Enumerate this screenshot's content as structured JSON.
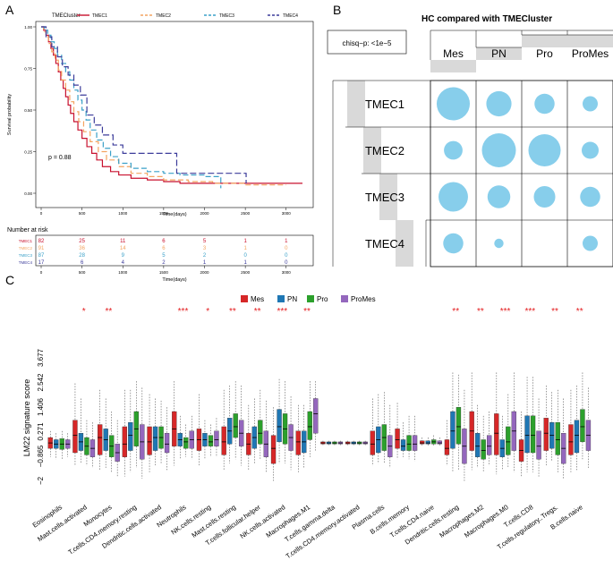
{
  "panel_labels": {
    "a": "A",
    "b": "B",
    "c": "C"
  },
  "chart_data": [
    {
      "type": "line",
      "title": "",
      "legend_title": "TMECluster",
      "xlabel": "Time(days)",
      "ylabel": "Survival probability",
      "xlim": [
        0,
        3200
      ],
      "ylim": [
        0,
        1
      ],
      "x_ticks": [
        "0",
        "500",
        "1000",
        "1500",
        "2000",
        "2500",
        "3000"
      ],
      "y_ticks": [
        "0.00",
        "0.25",
        "0.50",
        "0.75",
        "1.00"
      ],
      "annotation": "p = 0.88",
      "series": [
        {
          "name": "TMEC1",
          "color": "#c8102e",
          "dash": "",
          "x": [
            0,
            30,
            60,
            90,
            120,
            150,
            180,
            210,
            240,
            270,
            300,
            330,
            360,
            400,
            450,
            500,
            560,
            620,
            680,
            750,
            850,
            950,
            1100,
            1300,
            1500,
            1700,
            1900,
            2200,
            2700,
            3200
          ],
          "y": [
            1.0,
            0.98,
            0.95,
            0.91,
            0.87,
            0.83,
            0.78,
            0.73,
            0.68,
            0.63,
            0.58,
            0.53,
            0.48,
            0.43,
            0.38,
            0.33,
            0.28,
            0.24,
            0.2,
            0.16,
            0.13,
            0.11,
            0.09,
            0.08,
            0.07,
            0.06,
            0.06,
            0.06,
            0.06,
            0.06
          ]
        },
        {
          "name": "TMEC2",
          "color": "#f4a460",
          "dash": "6,3",
          "x": [
            0,
            30,
            60,
            90,
            130,
            170,
            210,
            250,
            300,
            350,
            400,
            460,
            520,
            600,
            700,
            800,
            950,
            1100,
            1300,
            1500,
            1800,
            2100,
            2500,
            3000
          ],
          "y": [
            1.0,
            0.97,
            0.94,
            0.9,
            0.85,
            0.8,
            0.74,
            0.68,
            0.62,
            0.55,
            0.49,
            0.43,
            0.37,
            0.31,
            0.25,
            0.2,
            0.16,
            0.12,
            0.1,
            0.08,
            0.07,
            0.06,
            0.05,
            0.05
          ]
        },
        {
          "name": "TMEC3",
          "color": "#3aa0c8",
          "dash": "6,3",
          "x": [
            0,
            40,
            80,
            120,
            160,
            200,
            250,
            300,
            350,
            400,
            450,
            500,
            550,
            600,
            680,
            760,
            850,
            950,
            1100,
            1300,
            1500,
            1700,
            2000,
            2180,
            2200
          ],
          "y": [
            1.0,
            0.98,
            0.95,
            0.91,
            0.87,
            0.83,
            0.78,
            0.73,
            0.68,
            0.62,
            0.56,
            0.5,
            0.44,
            0.38,
            0.32,
            0.27,
            0.22,
            0.18,
            0.15,
            0.13,
            0.12,
            0.11,
            0.1,
            0.1,
            0.03
          ]
        },
        {
          "name": "TMEC4",
          "color": "#3b3b9a",
          "dash": "7,3",
          "x": [
            0,
            60,
            130,
            200,
            260,
            330,
            400,
            480,
            560,
            650,
            750,
            880,
            1000,
            1200,
            1650,
            1660,
            1720,
            2500,
            2510
          ],
          "y": [
            1.0,
            0.94,
            0.88,
            0.82,
            0.76,
            0.71,
            0.65,
            0.59,
            0.47,
            0.41,
            0.35,
            0.29,
            0.24,
            0.24,
            0.24,
            0.12,
            0.12,
            0.12,
            0.06
          ]
        }
      ],
      "risk_table": {
        "title": "Number at risk",
        "xlabel": "Time(days)",
        "rows": [
          {
            "name": "TMEC1",
            "color": "#c8102e",
            "values": [
              "82",
              "25",
              "11",
              "6",
              "5",
              "1",
              "1"
            ]
          },
          {
            "name": "TMEC2",
            "color": "#f4a460",
            "values": [
              "91",
              "36",
              "14",
              "6",
              "3",
              "1",
              "0"
            ]
          },
          {
            "name": "TMEC3",
            "color": "#3aa0c8",
            "values": [
              "87",
              "28",
              "9",
              "5",
              "2",
              "0",
              "0"
            ]
          },
          {
            "name": "TMEC4",
            "color": "#3b3b9a",
            "values": [
              "17",
              "6",
              "4",
              "2",
              "1",
              "1",
              "0"
            ]
          }
        ]
      }
    },
    {
      "type": "heatmap",
      "title": "HC compared with TMECluster",
      "stat_label": "chisq−p: <1e−5",
      "columns": [
        "Mes",
        "PN",
        "Pro",
        "ProMes"
      ],
      "rows": [
        "TMEC1",
        "TMEC2",
        "TMEC3",
        "TMEC4"
      ],
      "bubble_color": "#87ceeb",
      "values": [
        [
          38,
          22,
          14,
          8
        ],
        [
          12,
          40,
          36,
          10
        ],
        [
          30,
          18,
          16,
          14
        ],
        [
          14,
          3,
          0,
          8
        ]
      ]
    },
    {
      "type": "box",
      "ylabel": "LM22 signature score",
      "y_ticks": [
        "3.677",
        "2.542",
        "1.406",
        "0.271",
        "−0.865",
        "−2"
      ],
      "y_tick_values": [
        3.677,
        2.542,
        1.406,
        0.271,
        -0.865,
        -2.0
      ],
      "ylim": [
        -2.6,
        5.0
      ],
      "legend": [
        {
          "name": "Mes",
          "color": "#d62728"
        },
        {
          "name": "PN",
          "color": "#1f77b4"
        },
        {
          "name": "Pro",
          "color": "#2ca02c"
        },
        {
          "name": "ProMes",
          "color": "#9467bd"
        }
      ],
      "categories": [
        {
          "name": "Eosinophils",
          "sig": ""
        },
        {
          "name": "Mast.cells.activated",
          "sig": "*"
        },
        {
          "name": "Monocytes",
          "sig": "**"
        },
        {
          "name": "T.cells.CD4.memory.resting",
          "sig": ""
        },
        {
          "name": "Dendritic.cells.activated",
          "sig": ""
        },
        {
          "name": "Neutrophils",
          "sig": "***"
        },
        {
          "name": "NK.cells.resting",
          "sig": "*"
        },
        {
          "name": "Mast.cells.resting",
          "sig": "**"
        },
        {
          "name": "T.cells.follicular.helper",
          "sig": "**"
        },
        {
          "name": "NK.cells.activated",
          "sig": "***"
        },
        {
          "name": "Macrophages.M1",
          "sig": "**"
        },
        {
          "name": "T.cells.gamma.delta",
          "sig": ""
        },
        {
          "name": "T.cells.CD4.memory.activated",
          "sig": ""
        },
        {
          "name": "Plasma.cells",
          "sig": ""
        },
        {
          "name": "B.cells.memory",
          "sig": ""
        },
        {
          "name": "T.cells.CD4.naive",
          "sig": ""
        },
        {
          "name": "Dendritic.cells.resting",
          "sig": "**"
        },
        {
          "name": "Macrophages.M2",
          "sig": "**"
        },
        {
          "name": "Macrophages.M0",
          "sig": "***"
        },
        {
          "name": "T.cells.CD8",
          "sig": "***"
        },
        {
          "name": "T.cells.regulatory..Tregs.",
          "sig": "**"
        },
        {
          "name": "B.cells.naive",
          "sig": "**"
        }
      ],
      "boxes": [
        [
          [
            -0.9,
            -0.5,
            -0.25,
            0.0,
            0.3
          ],
          [
            -1.0,
            -0.5,
            -0.3,
            -0.1,
            0.2
          ],
          [
            -1.0,
            -0.55,
            -0.3,
            -0.05,
            0.3
          ],
          [
            -0.9,
            -0.5,
            -0.3,
            -0.1,
            0.2
          ]
        ],
        [
          [
            -1.3,
            -0.7,
            0.1,
            0.8,
            2.5
          ],
          [
            -1.2,
            -0.6,
            -0.2,
            0.2,
            1.8
          ],
          [
            -1.3,
            -0.8,
            -0.4,
            0.0,
            0.8
          ],
          [
            -1.4,
            -0.9,
            -0.5,
            -0.1,
            0.7
          ]
        ],
        [
          [
            -1.5,
            -0.8,
            0.0,
            0.6,
            2.2
          ],
          [
            -1.4,
            -0.6,
            -0.1,
            0.4,
            1.8
          ],
          [
            -1.6,
            -0.9,
            -0.4,
            0.1,
            1.2
          ],
          [
            -1.8,
            -1.1,
            -0.7,
            -0.3,
            0.8
          ]
        ],
        [
          [
            -1.8,
            -0.9,
            -0.3,
            0.5,
            2.2
          ],
          [
            -1.6,
            -0.6,
            0.1,
            0.7,
            2.2
          ],
          [
            -1.4,
            -0.4,
            0.4,
            1.2,
            2.6
          ],
          [
            -1.9,
            -1.0,
            -0.2,
            0.6,
            2.3
          ]
        ],
        [
          [
            -1.6,
            -0.8,
            -0.2,
            0.5,
            2.0
          ],
          [
            -1.3,
            -0.6,
            0.0,
            0.5,
            1.8
          ],
          [
            -1.2,
            -0.5,
            0.0,
            0.5,
            1.7
          ],
          [
            -1.5,
            -0.7,
            -0.3,
            0.2,
            1.4
          ]
        ],
        [
          [
            -1.3,
            -0.4,
            0.4,
            1.2,
            2.6
          ],
          [
            -1.0,
            -0.4,
            -0.1,
            0.2,
            1.0
          ],
          [
            -0.9,
            -0.5,
            -0.2,
            0.0,
            0.6
          ],
          [
            -1.0,
            -0.5,
            -0.1,
            0.3,
            1.0
          ]
        ],
        [
          [
            -1.3,
            -0.6,
            -0.1,
            0.4,
            2.0
          ],
          [
            -1.0,
            -0.4,
            -0.1,
            0.2,
            0.8
          ],
          [
            -0.9,
            -0.4,
            -0.2,
            0.1,
            0.6
          ],
          [
            -0.9,
            -0.4,
            -0.1,
            0.3,
            0.9
          ]
        ],
        [
          [
            -1.5,
            -0.8,
            -0.2,
            0.5,
            2.2
          ],
          [
            -1.2,
            -0.3,
            0.3,
            0.9,
            2.4
          ],
          [
            -1.0,
            0.0,
            0.5,
            1.1,
            2.6
          ],
          [
            -1.3,
            -0.4,
            0.2,
            0.8,
            2.4
          ]
        ],
        [
          [
            -1.5,
            -0.8,
            -0.3,
            0.2,
            1.5
          ],
          [
            -1.2,
            -0.5,
            0.0,
            0.5,
            1.8
          ],
          [
            -1.0,
            -0.3,
            0.2,
            0.8,
            2.2
          ],
          [
            -1.6,
            -0.9,
            -0.3,
            0.3,
            1.7
          ]
        ],
        [
          [
            -2.0,
            -1.2,
            -0.5,
            0.1,
            1.4
          ],
          [
            -1.2,
            -0.2,
            0.5,
            1.3,
            2.7
          ],
          [
            -1.2,
            -0.3,
            0.4,
            1.1,
            2.6
          ],
          [
            -1.5,
            -0.6,
            0.0,
            0.6,
            1.9
          ]
        ],
        [
          [
            -1.6,
            -0.8,
            -0.2,
            0.3,
            1.5
          ],
          [
            -1.4,
            -0.7,
            -0.2,
            0.3,
            1.5
          ],
          [
            -0.9,
            -0.1,
            0.5,
            1.2,
            2.6
          ],
          [
            -0.6,
            0.2,
            1.1,
            1.8,
            2.6
          ]
        ],
        [
          [
            -0.35,
            -0.3,
            -0.25,
            -0.2,
            -0.15
          ],
          [
            -0.35,
            -0.3,
            -0.25,
            -0.2,
            -0.15
          ],
          [
            -0.35,
            -0.3,
            -0.25,
            -0.2,
            -0.15
          ],
          [
            -0.35,
            -0.3,
            -0.25,
            -0.2,
            -0.15
          ]
        ],
        [
          [
            -0.35,
            -0.3,
            -0.25,
            -0.2,
            -0.15
          ],
          [
            -0.35,
            -0.3,
            -0.25,
            -0.2,
            -0.15
          ],
          [
            -0.35,
            -0.3,
            -0.25,
            -0.2,
            -0.15
          ],
          [
            -0.35,
            -0.3,
            -0.25,
            -0.2,
            -0.15
          ]
        ],
        [
          [
            -1.3,
            -0.8,
            -0.3,
            0.3,
            1.8
          ],
          [
            -1.2,
            -0.7,
            -0.1,
            0.5,
            2.0
          ],
          [
            -1.2,
            -0.6,
            0.0,
            0.6,
            2.1
          ],
          [
            -1.4,
            -0.9,
            -0.4,
            0.1,
            1.5
          ]
        ],
        [
          [
            -1.0,
            -0.5,
            -0.1,
            0.4,
            1.6
          ],
          [
            -0.9,
            -0.6,
            -0.4,
            -0.1,
            0.7
          ],
          [
            -1.0,
            -0.6,
            -0.3,
            0.1,
            1.0
          ],
          [
            -1.1,
            -0.6,
            -0.3,
            0.1,
            1.0
          ]
        ],
        [
          [
            -0.4,
            -0.3,
            -0.25,
            -0.15,
            0.0
          ],
          [
            -0.4,
            -0.3,
            -0.25,
            -0.15,
            0.0
          ],
          [
            -0.4,
            -0.3,
            -0.2,
            -0.1,
            0.1
          ],
          [
            -0.4,
            -0.3,
            -0.25,
            -0.15,
            0.0
          ]
        ],
        [
          [
            -1.3,
            -0.8,
            -0.5,
            -0.1,
            0.8
          ],
          [
            -1.6,
            -0.5,
            0.3,
            1.2,
            3.0
          ],
          [
            -1.5,
            -0.3,
            0.5,
            1.4,
            2.9
          ],
          [
            -2.0,
            -1.2,
            -0.4,
            0.4,
            2.2
          ]
        ],
        [
          [
            -1.5,
            -0.6,
            0.3,
            1.2,
            3.0
          ],
          [
            -1.4,
            -0.9,
            -0.4,
            0.2,
            1.5
          ],
          [
            -1.6,
            -1.0,
            -0.6,
            -0.1,
            1.0
          ],
          [
            -1.3,
            -0.8,
            -0.4,
            0.1,
            1.2
          ]
        ],
        [
          [
            -1.7,
            -0.8,
            0.2,
            1.1,
            3.0
          ],
          [
            -1.5,
            -0.9,
            -0.5,
            -0.1,
            1.0
          ],
          [
            -1.4,
            -0.8,
            -0.2,
            0.5,
            2.0
          ],
          [
            -1.6,
            -0.6,
            0.3,
            1.2,
            3.0
          ]
        ],
        [
          [
            -1.8,
            -1.1,
            -0.6,
            -0.1,
            1.2
          ],
          [
            -1.6,
            -0.7,
            0.1,
            1.0,
            2.8
          ],
          [
            -1.6,
            -0.7,
            0.1,
            1.0,
            2.8
          ],
          [
            -1.8,
            -1.0,
            -0.4,
            0.3,
            1.8
          ]
        ],
        [
          [
            -1.3,
            -0.6,
            0.2,
            0.9,
            2.4
          ],
          [
            -1.1,
            -0.5,
            0.1,
            0.7,
            2.1
          ],
          [
            -1.6,
            -0.8,
            -0.1,
            0.7,
            2.2
          ],
          [
            -1.9,
            -1.2,
            -0.5,
            0.2,
            1.8
          ]
        ],
        [
          [
            -1.6,
            -0.8,
            -0.2,
            0.6,
            2.2
          ],
          [
            -1.5,
            -0.7,
            0.1,
            0.8,
            2.4
          ],
          [
            -1.0,
            -0.2,
            0.5,
            1.3,
            3.0
          ],
          [
            -1.4,
            -0.6,
            0.1,
            0.8,
            2.3
          ]
        ]
      ]
    }
  ]
}
